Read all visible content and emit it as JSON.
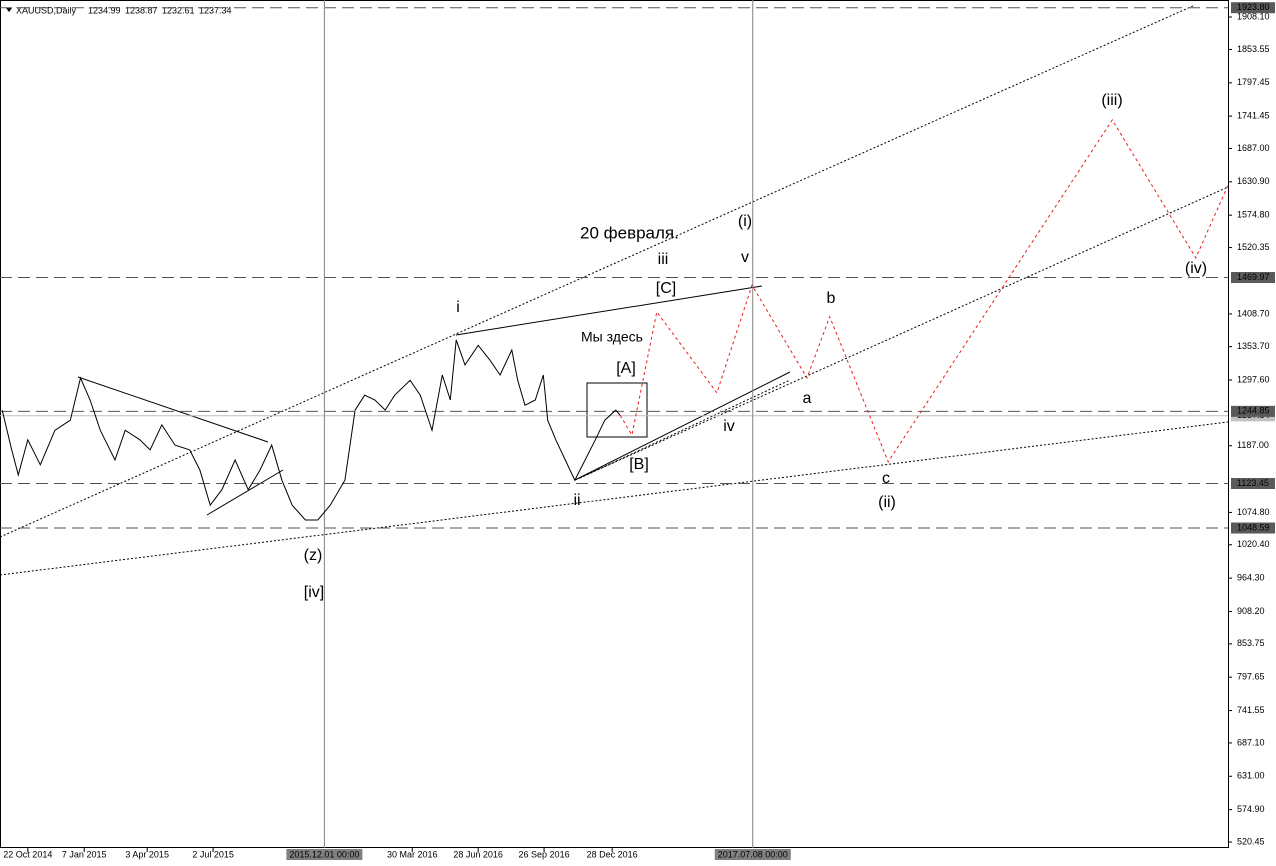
{
  "chart_data": {
    "type": "line",
    "title": "XAUUSD,Daily",
    "ohlc": [
      1234.99,
      1238.87,
      1232.61,
      1237.34
    ],
    "xlim": [
      "2014-09-14",
      "2019-04-18"
    ],
    "ylim": [
      520.45,
      1923.8
    ],
    "xticks": [
      {
        "value": "2014-10-22",
        "label": "22 Oct 2014"
      },
      {
        "value": "2015-01-07",
        "label": "7 Jan 2015"
      },
      {
        "value": "2015-04-03",
        "label": "3 Apr 2015"
      },
      {
        "value": "2015-07-02",
        "label": "2 Jul 2015"
      },
      {
        "value": "2016-03-30",
        "label": "30 Mar 2016"
      },
      {
        "value": "2016-06-28",
        "label": "28 Jun 2016"
      },
      {
        "value": "2016-09-26",
        "label": "26 Sep 2016"
      },
      {
        "value": "2016-12-28",
        "label": "28 Dec 2016"
      }
    ],
    "vlines": [
      {
        "value": "2015-12-01",
        "label": "2015.12.01 00:00"
      },
      {
        "value": "2017-07-08",
        "label": "2017.07.08 00:00"
      }
    ],
    "yticks": [
      {
        "value": 1908.1,
        "label": "1908.10"
      },
      1853.55,
      1797.45,
      1741.45,
      {
        "value": 1687.0,
        "label": "1687.00"
      },
      {
        "value": 1630.9,
        "label": "1630.90"
      },
      {
        "value": 1574.8,
        "label": "1574.80"
      },
      1520.35,
      {
        "value": 1408.7,
        "label": "1408.70"
      },
      {
        "value": 1353.7,
        "label": "1353.70"
      },
      {
        "value": 1297.6,
        "label": "1297.60"
      },
      {
        "value": 1187.0,
        "label": "1187.00"
      },
      {
        "value": 1074.8,
        "label": "1074.80"
      },
      {
        "value": 1020.4,
        "label": "1020.40"
      },
      {
        "value": 964.3,
        "label": "964.30"
      },
      {
        "value": 908.2,
        "label": "908.20"
      },
      853.75,
      797.65,
      741.55,
      {
        "value": 687.1,
        "label": "687.10"
      },
      {
        "value": 631.0,
        "label": "631.00"
      },
      {
        "value": 574.9,
        "label": "574.90"
      },
      520.45
    ],
    "levels": [
      {
        "value": 1923.8,
        "label": "1923.80"
      },
      1469.97,
      1244.85,
      1123.45,
      1048.59
    ],
    "current": 1237.34,
    "series": [
      {
        "name": "XAUUSD",
        "color": "#000000",
        "style": "solid",
        "x": [
          "2014-09-17",
          "2014-09-30",
          "2014-10-09",
          "2014-10-22",
          "2014-11-08",
          "2014-11-28",
          "2014-12-19",
          "2015-01-02",
          "2015-01-15",
          "2015-01-29",
          "2015-02-18",
          "2015-03-04",
          "2015-03-24",
          "2015-04-07",
          "2015-04-23",
          "2015-05-11",
          "2015-05-31",
          "2015-06-14",
          "2015-06-28",
          "2015-07-14",
          "2015-08-01",
          "2015-08-19",
          "2015-09-04",
          "2015-09-20",
          "2015-10-04",
          "2015-10-18",
          "2015-11-05",
          "2015-11-22",
          "2015-12-09",
          "2015-12-29",
          "2016-01-12",
          "2016-01-25",
          "2016-02-08",
          "2016-02-22",
          "2016-03-06",
          "2016-03-27",
          "2016-04-10",
          "2016-04-26",
          "2016-05-10",
          "2016-05-21",
          "2016-05-29",
          "2016-06-10",
          "2016-06-28",
          "2016-07-14",
          "2016-07-28",
          "2016-08-13",
          "2016-08-21",
          "2016-08-31",
          "2016-09-14",
          "2016-09-25",
          "2016-10-01",
          "2016-10-12",
          "2016-10-25",
          "2016-11-07",
          "2016-11-21",
          "2016-12-05",
          "2016-12-18",
          "2017-01-02",
          "2017-01-08"
        ],
        "values": [
          1247,
          1180,
          1138,
          1197,
          1155,
          1213,
          1230,
          1301,
          1264,
          1213,
          1163,
          1213,
          1197,
          1180,
          1222,
          1188,
          1180,
          1146,
          1087,
          1113,
          1163,
          1113,
          1146,
          1188,
          1129,
          1087,
          1062,
          1062,
          1087,
          1129,
          1247,
          1272,
          1264,
          1247,
          1272,
          1297,
          1272,
          1213,
          1306,
          1264,
          1365,
          1323,
          1356,
          1331,
          1306,
          1348,
          1297,
          1255,
          1264,
          1306,
          1230,
          1197,
          1163,
          1129,
          1163,
          1197,
          1230,
          1247,
          1238
        ]
      },
      {
        "name": "Forecast",
        "color": "#e8201c",
        "style": "dashed",
        "x": [
          "2017-01-08",
          "2017-01-24",
          "2017-02-27",
          "2017-05-20",
          "2017-07-07",
          "2017-09-20",
          "2017-10-21",
          "2018-01-09",
          "2018-11-11",
          "2019-03-05",
          "2019-04-18"
        ],
        "values": [
          1238,
          1205,
          1412,
          1276,
          1457,
          1301,
          1404,
          1160,
          1735,
          1503,
          1625
        ]
      }
    ],
    "annotations": [
      {
        "text": "20 февраля.",
        "color": "#1e8c1e"
      },
      {
        "text": "(i)",
        "color": "#1e8c1e"
      },
      {
        "text": "iii",
        "color": "#1414d2"
      },
      {
        "text": "v",
        "color": "#1414d2"
      },
      {
        "text": "i",
        "color": "#1414d2"
      },
      {
        "text": "[C]",
        "color": "#e8201c"
      },
      {
        "text": "Мы здесь",
        "color": "#000000"
      },
      {
        "text": "[A]",
        "color": "#e8201c"
      },
      {
        "text": "b",
        "color": "#1414d2"
      },
      {
        "text": "a",
        "color": "#1414d2"
      },
      {
        "text": "iv",
        "color": "#1414d2"
      },
      {
        "text": "[B]",
        "color": "#e8201c"
      },
      {
        "text": "ii",
        "color": "#1414d2"
      },
      {
        "text": "c",
        "color": "#1414d2"
      },
      {
        "text": "(ii)",
        "color": "#1e8c1e"
      },
      {
        "text": "(z)",
        "color": "#1e8c1e"
      },
      {
        "text": "[iv]",
        "color": "#e8201c"
      },
      {
        "text": "(iii)",
        "color": "#1e8c1e"
      },
      {
        "text": "(iv)",
        "color": "#1e8c1e"
      }
    ]
  }
}
